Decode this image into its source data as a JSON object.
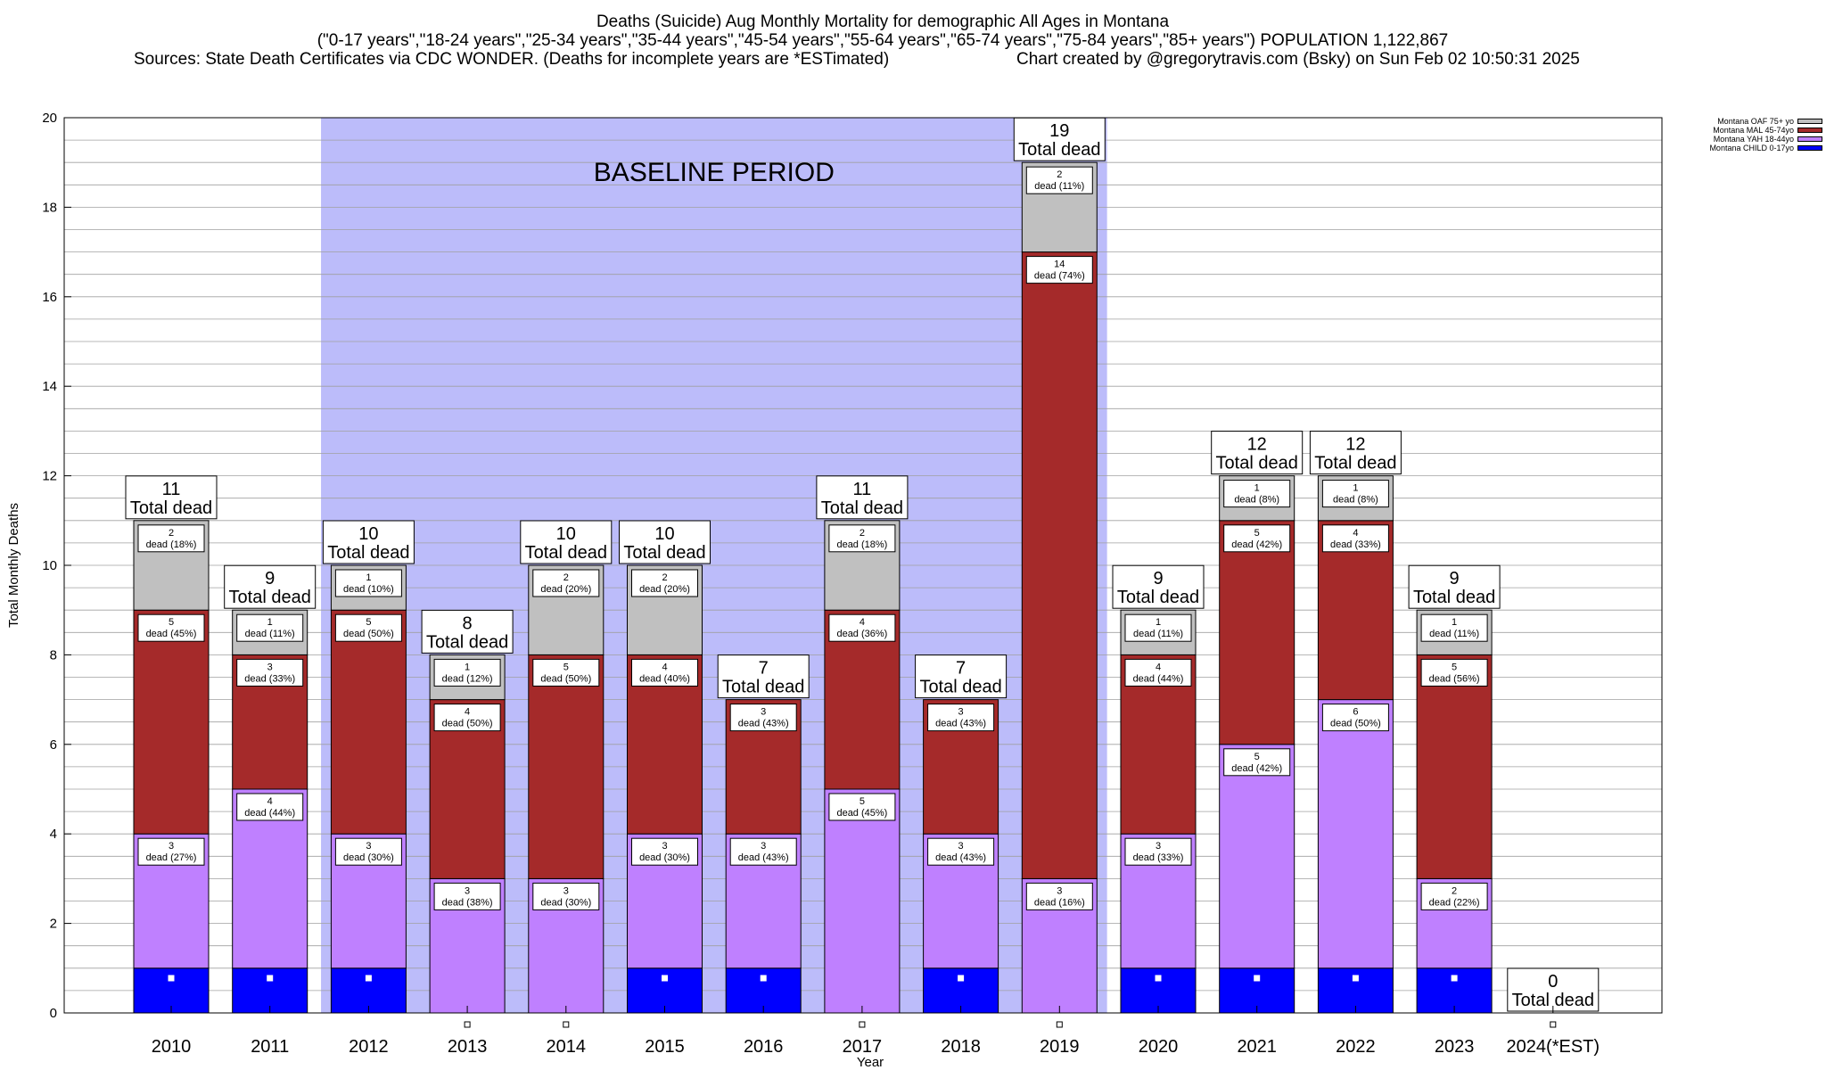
{
  "chart_data": {
    "type": "bar",
    "stacked": true,
    "title": "Deaths (Suicide) Aug Monthly Mortality for demographic All Ages in Montana",
    "subtitle": "(\"0-17 years\",\"18-24 years\",\"25-34 years\",\"35-44 years\",\"45-54 years\",\"55-64 years\",\"65-74 years\",\"75-84 years\",\"85+ years\") POPULATION 1,122,867",
    "source": "Sources: State Death Certificates via CDC WONDER. (Deaths for incomplete years are *ESTimated)",
    "credit": "Chart created by @gregorytravis.com (Bsky) on Sun Feb 02 10:50:31 2025",
    "xlabel": "Year",
    "ylabel": "Total Monthly Deaths",
    "ylim": [
      0,
      20
    ],
    "yticks": [
      "0",
      "2",
      "4",
      "6",
      "8",
      "10",
      "12",
      "14",
      "16",
      "18",
      "20"
    ],
    "grid": true,
    "legend_position": "top-right",
    "baseline": {
      "label": "BASELINE PERIOD",
      "start": "2012",
      "end": "2019",
      "color": "#bcbcfa"
    },
    "categories": [
      "2010",
      "2011",
      "2012",
      "2013",
      "2014",
      "2015",
      "2016",
      "2017",
      "2018",
      "2019",
      "2020",
      "2021",
      "2022",
      "2023",
      "2024(*EST)"
    ],
    "totals": [
      11,
      9,
      10,
      8,
      10,
      10,
      7,
      11,
      7,
      19,
      9,
      12,
      12,
      9,
      0
    ],
    "total_suffix": "Total dead",
    "series": [
      {
        "name": "Montana CHILD 0-17yo",
        "color": "#0000ff",
        "values": [
          1,
          1,
          1,
          0,
          0,
          1,
          1,
          0,
          1,
          0,
          1,
          1,
          1,
          1,
          0
        ],
        "labels": [
          "",
          "",
          "",
          "",
          "",
          "",
          "",
          "",
          "",
          "",
          "",
          "",
          "",
          "",
          ""
        ]
      },
      {
        "name": "Montana YAH 18-44yo",
        "color": "#bf80ff",
        "values": [
          3,
          4,
          3,
          3,
          3,
          3,
          3,
          5,
          3,
          3,
          3,
          5,
          6,
          2,
          0
        ],
        "labels": [
          "3\ndead (27%)",
          "4\ndead (44%)",
          "3\ndead (30%)",
          "3\ndead (38%)",
          "3\ndead (30%)",
          "3\ndead (30%)",
          "3\ndead (43%)",
          "5\ndead (45%)",
          "3\ndead (43%)",
          "3\ndead (16%)",
          "3\ndead (33%)",
          "5\ndead (42%)",
          "6\ndead (50%)",
          "2\ndead (22%)",
          ""
        ]
      },
      {
        "name": "Montana MAL 45-74yo",
        "color": "#a52a2a",
        "values": [
          5,
          3,
          5,
          4,
          5,
          4,
          3,
          4,
          3,
          14,
          4,
          5,
          4,
          5,
          0
        ],
        "labels": [
          "5\ndead (45%)",
          "3\ndead (33%)",
          "5\ndead (50%)",
          "4\ndead (50%)",
          "5\ndead (50%)",
          "4\ndead (40%)",
          "3\ndead (43%)",
          "4\ndead (36%)",
          "3\ndead (43%)",
          "14\ndead (74%)",
          "4\ndead (44%)",
          "5\ndead (42%)",
          "4\ndead (33%)",
          "5\ndead (56%)",
          ""
        ]
      },
      {
        "name": "Montana OAF 75+ yo",
        "color": "#c0c0c0",
        "values": [
          2,
          1,
          1,
          1,
          2,
          2,
          0,
          2,
          0,
          2,
          1,
          1,
          1,
          1,
          0
        ],
        "labels": [
          "2\ndead (18%)",
          "1\ndead (11%)",
          "1\ndead (10%)",
          "1\ndead (12%)",
          "2\ndead (20%)",
          "2\ndead (20%)",
          "",
          "2\ndead (18%)",
          "",
          "2\ndead (11%)",
          "1\ndead (11%)",
          "1\ndead (8%)",
          "1\ndead (8%)",
          "1\ndead (11%)",
          ""
        ]
      }
    ]
  }
}
